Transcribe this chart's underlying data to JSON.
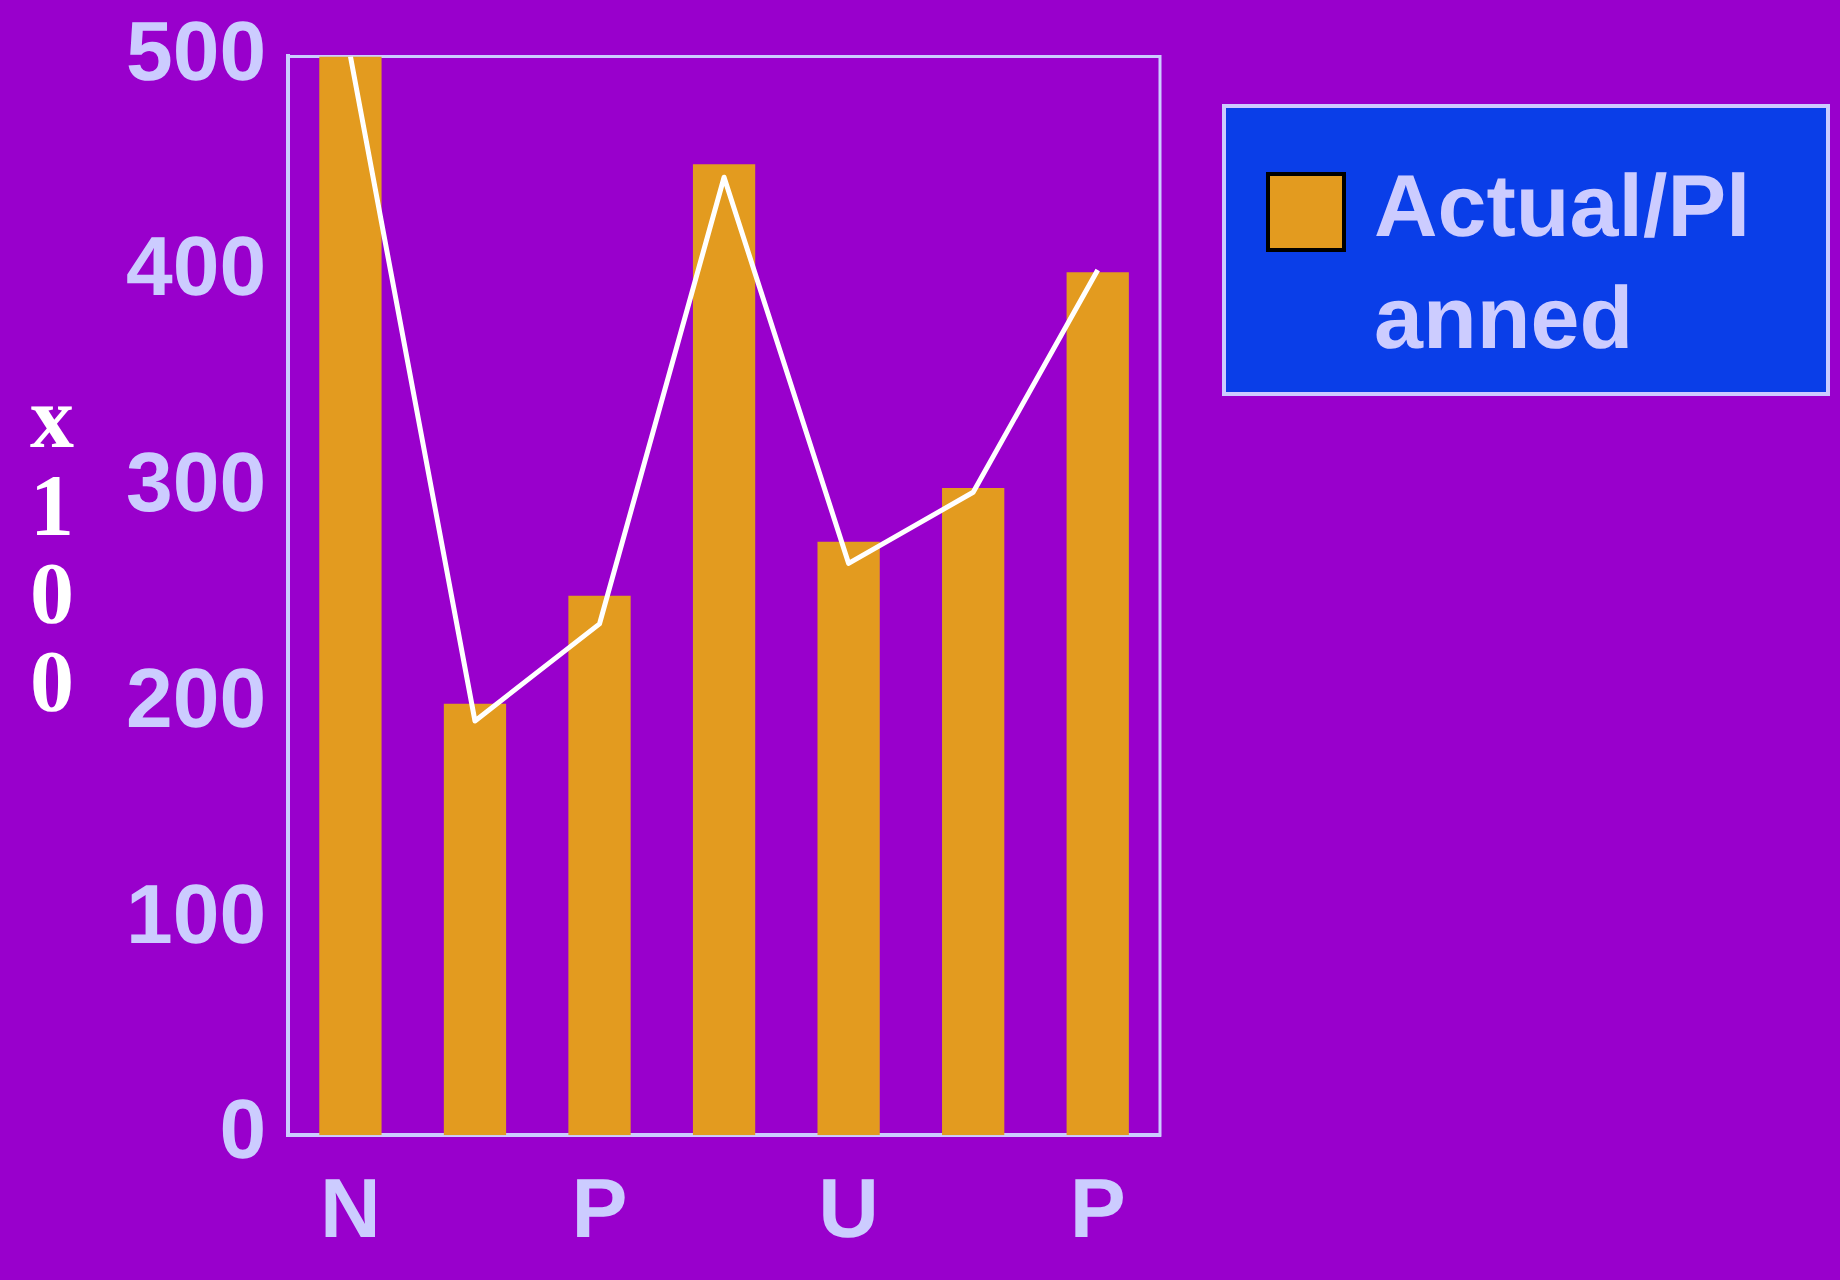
{
  "chart_data": {
    "type": "bar",
    "ylabel": "x100",
    "categories": [
      "N",
      null,
      "P",
      null,
      "U",
      null,
      "P"
    ],
    "series": [
      {
        "name": "Actual/Planned",
        "color": "#e39b1f",
        "values": [
          500,
          200,
          250,
          450,
          275,
          300,
          400
        ]
      },
      {
        "type": "line",
        "color": "#ffffff",
        "values": [
          500,
          192,
          237,
          444,
          265,
          298,
          401
        ]
      }
    ],
    "ylim": [
      0,
      500
    ],
    "yticks": [
      0,
      100,
      200,
      300,
      400,
      500
    ],
    "grid": false,
    "legend": "top right",
    "marker": "none"
  }
}
